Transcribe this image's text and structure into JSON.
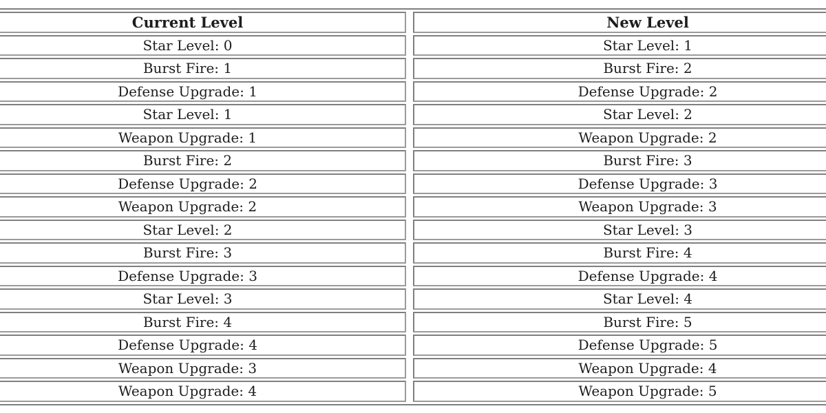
{
  "colors": {
    "background": "#ffffff",
    "table_border": "#7e7e7e",
    "cell_border": "#8a8a8a",
    "text": "#1d1d1d"
  },
  "table": {
    "columns": [
      {
        "label": "Current Level"
      },
      {
        "label": "New Level"
      }
    ],
    "rows": [
      {
        "current": "Star Level: 0",
        "new": "Star Level: 1"
      },
      {
        "current": "Burst Fire: 1",
        "new": "Burst Fire: 2"
      },
      {
        "current": "Defense Upgrade: 1",
        "new": "Defense Upgrade: 2"
      },
      {
        "current": "Star Level: 1",
        "new": "Star Level: 2"
      },
      {
        "current": "Weapon Upgrade: 1",
        "new": "Weapon Upgrade: 2"
      },
      {
        "current": "Burst Fire: 2",
        "new": "Burst Fire: 3"
      },
      {
        "current": "Defense Upgrade: 2",
        "new": "Defense Upgrade: 3"
      },
      {
        "current": "Weapon Upgrade: 2",
        "new": "Weapon Upgrade: 3"
      },
      {
        "current": "Star Level: 2",
        "new": "Star Level: 3"
      },
      {
        "current": "Burst Fire: 3",
        "new": "Burst Fire: 4"
      },
      {
        "current": "Defense Upgrade: 3",
        "new": "Defense Upgrade: 4"
      },
      {
        "current": "Star Level: 3",
        "new": "Star Level: 4"
      },
      {
        "current": "Burst Fire: 4",
        "new": "Burst Fire: 5"
      },
      {
        "current": "Defense Upgrade: 4",
        "new": "Defense Upgrade: 5"
      },
      {
        "current": "Weapon Upgrade: 3",
        "new": "Weapon Upgrade: 4"
      },
      {
        "current": "Weapon Upgrade: 4",
        "new": "Weapon Upgrade: 5"
      }
    ]
  }
}
